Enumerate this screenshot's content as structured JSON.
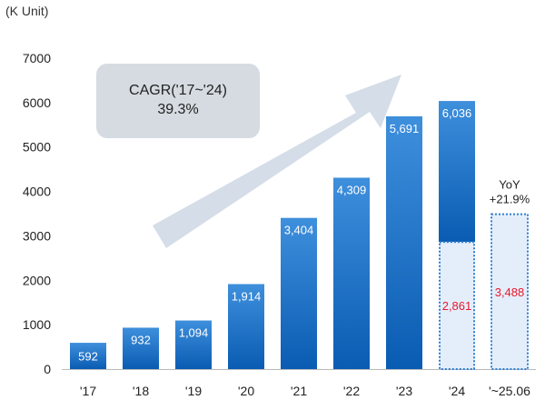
{
  "unit_label": "(K Unit)",
  "cagr_box": {
    "line1": "CAGR('17~'24)",
    "line2": "39.3%"
  },
  "yoy": {
    "line1": "YoY",
    "line2": "+21.9%"
  },
  "colors": {
    "bar_top": "#3e8fdc",
    "bar_bottom": "#0a5cb3",
    "dotted_fill": "#e4eefb",
    "dotted_border": "#2f7fd0",
    "highlight_text": "#e8192c",
    "cagr_box": "#d5dbe1",
    "arrow": "#cfd9e6"
  },
  "chart_data": {
    "type": "bar",
    "title": "",
    "xlabel": "",
    "ylabel": "(K Unit)",
    "ylim": [
      0,
      7000
    ],
    "yticks": [
      0,
      1000,
      2000,
      3000,
      4000,
      5000,
      6000,
      7000
    ],
    "ytick_labels": [
      "0",
      "1000",
      "2000",
      "3000",
      "4000",
      "5000",
      "6000",
      "7000"
    ],
    "grid": false,
    "categories": [
      "'17",
      "'18",
      "'19",
      "'20",
      "'21",
      "'22",
      "'23",
      "'24",
      "'~25.06"
    ],
    "values": [
      592,
      932,
      1094,
      1914,
      3404,
      4309,
      5691,
      6036,
      3488
    ],
    "value_labels": [
      "592",
      "932",
      "1,094",
      "1,914",
      "3,404",
      "4,309",
      "5,691",
      "6,036",
      "3,488"
    ],
    "partial": {
      "'24": {
        "value": 2861,
        "label": "2,861"
      }
    }
  }
}
